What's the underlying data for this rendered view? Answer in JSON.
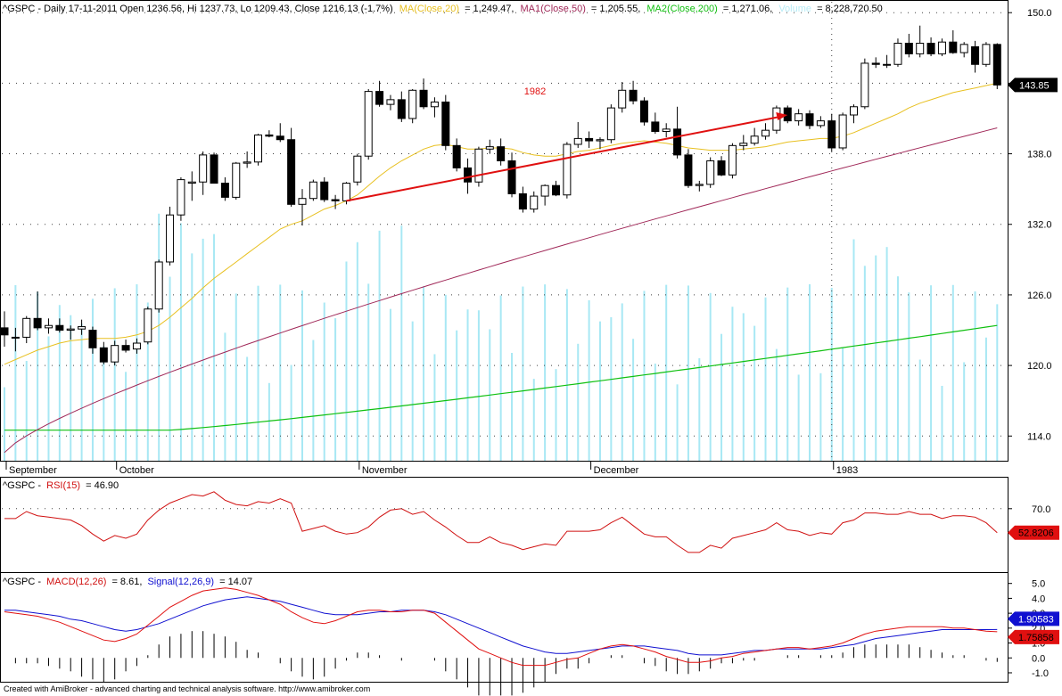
{
  "app": {
    "footer": "Created with AmiBroker - advanced charting and technical analysis software. http://www.amibroker.com"
  },
  "colors": {
    "ma20": "#e8c020",
    "ma50": "#a02858",
    "ma200": "#10c010",
    "volume": "#a8e8f4",
    "trend": "#e01010",
    "rsi": "#d01010",
    "macd": "#e01010",
    "signal": "#1010d0",
    "grid": "#404040"
  },
  "chart_data": [
    {
      "type": "candlestick",
      "header": {
        "symbol_info": "^GSPC - Daily 17-11-2011 Open 1236.56, Hi 1237.73, Lo 1209.43, Close 1216.13 (-1.7%)",
        "ma20_label": "MA(Close,20)",
        "ma20_value": "= 1,249.47,",
        "ma50_label": "MA1(Close,50)",
        "ma50_value": "= 1,205.55,",
        "ma200_label": "MA2(Close,200)",
        "ma200_value": "= 1,271.06,",
        "volume_label": "Volume",
        "volume_value": "= 8,228,720.50"
      },
      "y_ticks": [
        "150.0",
        "144.0",
        "138.0",
        "132.0",
        "126.0",
        "120.0",
        "114.0"
      ],
      "y_tick_values": [
        150,
        144,
        138,
        132,
        126,
        120,
        114
      ],
      "ylim": [
        111.9,
        151.0
      ],
      "x_labels": [
        {
          "label": "September",
          "index": 0
        },
        {
          "label": "October",
          "index": 10
        },
        {
          "label": "November",
          "index": 32
        },
        {
          "label": "December",
          "index": 53
        },
        {
          "label": "1983",
          "index": 75
        }
      ],
      "year_divider_index": 75,
      "annotation": {
        "text": "1982"
      },
      "last_price": "143.85",
      "trend_line": {
        "from_index": 31,
        "from_value": 134.0,
        "to_index": 71,
        "to_value": 141.3
      },
      "candles": [
        [
          123.2,
          124.6,
          121.6,
          122.6
        ],
        [
          122.4,
          123.2,
          121.2,
          122.4
        ],
        [
          122.4,
          124.2,
          121.9,
          124.0
        ],
        [
          124.0,
          126.3,
          123.0,
          123.2
        ],
        [
          123.2,
          124.0,
          122.7,
          123.4
        ],
        [
          123.4,
          124.0,
          122.8,
          123.0
        ],
        [
          123.0,
          123.4,
          122.2,
          123.1
        ],
        [
          123.1,
          123.9,
          122.6,
          123.3
        ],
        [
          123.0,
          123.3,
          121.0,
          121.5
        ],
        [
          121.5,
          122.0,
          120.1,
          120.3
        ],
        [
          120.3,
          122.1,
          120.0,
          121.7
        ],
        [
          121.7,
          122.2,
          121.1,
          121.3
        ],
        [
          121.4,
          122.3,
          121.0,
          121.9
        ],
        [
          122.0,
          125.0,
          121.8,
          124.8
        ],
        [
          124.8,
          129.0,
          124.5,
          128.8
        ],
        [
          128.8,
          133.5,
          128.5,
          132.8
        ],
        [
          132.8,
          136.0,
          132.3,
          135.8
        ],
        [
          135.5,
          136.5,
          134.0,
          135.6
        ],
        [
          135.6,
          138.2,
          134.5,
          137.9
        ],
        [
          137.9,
          138.1,
          135.5,
          135.5
        ],
        [
          135.5,
          136.0,
          134.0,
          134.3
        ],
        [
          134.3,
          137.3,
          134.1,
          137.2
        ],
        [
          137.2,
          138.2,
          136.8,
          137.3
        ],
        [
          137.3,
          139.7,
          137.0,
          139.6
        ],
        [
          139.6,
          140.0,
          139.4,
          139.5
        ],
        [
          139.5,
          140.6,
          139.0,
          139.2
        ],
        [
          139.2,
          140.2,
          133.5,
          133.7
        ],
        [
          133.7,
          135.0,
          131.9,
          134.2
        ],
        [
          134.2,
          135.8,
          134.0,
          135.6
        ],
        [
          135.6,
          136.0,
          133.9,
          134.1
        ],
        [
          134.1,
          134.5,
          133.3,
          134.0
        ],
        [
          134.0,
          135.6,
          133.7,
          135.5
        ],
        [
          135.6,
          138.0,
          135.3,
          137.8
        ],
        [
          137.8,
          143.5,
          137.5,
          143.3
        ],
        [
          143.3,
          144.2,
          142.0,
          142.2
        ],
        [
          142.2,
          143.0,
          141.7,
          142.6
        ],
        [
          142.6,
          143.3,
          140.7,
          141.0
        ],
        [
          141.0,
          143.5,
          140.6,
          143.4
        ],
        [
          143.4,
          144.4,
          141.8,
          142.0
        ],
        [
          142.0,
          142.8,
          141.1,
          142.4
        ],
        [
          142.4,
          143.0,
          138.3,
          138.7
        ],
        [
          138.7,
          139.3,
          136.5,
          136.8
        ],
        [
          136.8,
          137.6,
          134.6,
          135.6
        ],
        [
          135.6,
          138.6,
          135.2,
          138.4
        ],
        [
          138.4,
          139.2,
          138.0,
          138.6
        ],
        [
          138.6,
          139.3,
          137.0,
          137.4
        ],
        [
          137.4,
          138.1,
          134.3,
          134.6
        ],
        [
          134.6,
          135.2,
          133.0,
          133.3
        ],
        [
          133.3,
          134.8,
          133.0,
          134.4
        ],
        [
          134.4,
          135.4,
          133.6,
          135.3
        ],
        [
          135.3,
          135.7,
          134.4,
          134.5
        ],
        [
          134.5,
          139.0,
          134.2,
          138.8
        ],
        [
          138.8,
          140.7,
          138.5,
          139.3
        ],
        [
          139.3,
          139.9,
          138.5,
          139.1
        ],
        [
          139.1,
          139.4,
          138.4,
          139.2
        ],
        [
          139.2,
          142.2,
          138.9,
          141.9
        ],
        [
          141.9,
          144.1,
          141.5,
          143.4
        ],
        [
          143.4,
          144.2,
          142.2,
          142.5
        ],
        [
          142.5,
          142.8,
          140.4,
          140.7
        ],
        [
          140.7,
          141.5,
          139.7,
          139.9
        ],
        [
          139.9,
          140.6,
          139.4,
          140.1
        ],
        [
          140.1,
          142.0,
          137.6,
          137.9
        ],
        [
          137.9,
          138.4,
          135.1,
          135.3
        ],
        [
          135.3,
          135.7,
          134.8,
          135.4
        ],
        [
          135.4,
          137.7,
          135.1,
          137.4
        ],
        [
          137.4,
          137.8,
          136.1,
          136.2
        ],
        [
          136.2,
          138.9,
          135.9,
          138.7
        ],
        [
          138.7,
          139.6,
          138.3,
          138.9
        ],
        [
          138.9,
          140.2,
          138.7,
          139.5
        ],
        [
          139.5,
          140.6,
          139.2,
          140.0
        ],
        [
          140.0,
          142.1,
          139.7,
          141.9
        ],
        [
          141.9,
          142.1,
          140.6,
          140.8
        ],
        [
          140.8,
          141.8,
          140.4,
          141.4
        ],
        [
          141.4,
          141.7,
          140.1,
          140.4
        ],
        [
          140.4,
          141.2,
          140.2,
          140.8
        ],
        [
          140.8,
          141.4,
          138.2,
          138.5
        ],
        [
          138.5,
          141.5,
          138.3,
          141.3
        ],
        [
          141.3,
          142.2,
          140.6,
          142.0
        ],
        [
          142.0,
          146.1,
          141.8,
          145.7
        ],
        [
          145.7,
          146.2,
          145.3,
          145.6
        ],
        [
          145.6,
          146.4,
          145.3,
          145.6
        ],
        [
          145.6,
          147.8,
          145.4,
          147.4
        ],
        [
          147.4,
          148.2,
          146.2,
          146.5
        ],
        [
          146.5,
          148.9,
          146.2,
          147.4
        ],
        [
          147.4,
          147.9,
          146.3,
          146.5
        ],
        [
          146.5,
          147.8,
          146.3,
          147.5
        ],
        [
          147.5,
          148.5,
          146.5,
          146.6
        ],
        [
          146.6,
          147.5,
          146.2,
          147.3
        ],
        [
          147.1,
          147.6,
          144.9,
          145.6
        ],
        [
          145.6,
          147.5,
          145.4,
          147.3
        ],
        [
          147.3,
          147.4,
          143.5,
          143.85
        ]
      ],
      "ma20": [
        120.1,
        120.5,
        120.9,
        121.3,
        121.6,
        121.9,
        122.1,
        122.2,
        122.3,
        122.3,
        122.3,
        122.4,
        122.6,
        122.9,
        123.4,
        124.1,
        124.9,
        125.7,
        126.6,
        127.4,
        128.1,
        128.8,
        129.5,
        130.2,
        130.9,
        131.6,
        132.0,
        132.3,
        132.8,
        133.3,
        133.6,
        134.0,
        134.5,
        135.3,
        136.1,
        136.8,
        137.4,
        137.9,
        138.4,
        138.7,
        138.8,
        138.6,
        138.4,
        138.4,
        138.5,
        138.5,
        138.4,
        138.1,
        137.9,
        137.8,
        137.8,
        138.0,
        138.2,
        138.3,
        138.5,
        138.7,
        138.9,
        139.0,
        139.1,
        139.0,
        138.9,
        138.7,
        138.5,
        138.4,
        138.3,
        138.3,
        138.3,
        138.4,
        138.5,
        138.6,
        138.8,
        139.0,
        139.1,
        139.2,
        139.3,
        139.3,
        139.5,
        139.8,
        140.2,
        140.6,
        141.0,
        141.4,
        141.9,
        142.3,
        142.6,
        142.9,
        143.2,
        143.4,
        143.6,
        143.8,
        144.0
      ]
    },
    {
      "type": "line",
      "header": {
        "symbol": "^GSPC -",
        "rsi_label": "RSI(15)",
        "rsi_value": "= 46.90"
      },
      "y_ticks": [
        "70.0"
      ],
      "y_tick_values": [
        70
      ],
      "ylim": [
        25,
        92
      ],
      "last_value": "52.8206",
      "rsi": [
        63,
        63,
        68,
        65,
        64,
        63,
        62,
        58,
        52,
        47,
        51,
        49,
        52,
        62,
        69,
        74,
        77,
        80,
        79,
        82,
        76,
        73,
        72,
        75,
        74,
        77,
        74,
        54,
        56,
        58,
        54,
        52,
        53,
        57,
        64,
        69,
        70,
        66,
        68,
        62,
        57,
        51,
        46,
        46,
        50,
        46,
        44,
        41,
        43,
        45,
        44,
        54,
        54,
        54,
        55,
        60,
        64,
        58,
        52,
        50,
        50,
        44,
        39,
        39,
        44,
        42,
        49,
        51,
        53,
        55,
        60,
        55,
        54,
        51,
        53,
        52,
        60,
        62,
        67,
        67,
        66,
        66,
        68,
        66,
        66,
        63,
        65,
        65,
        64,
        60,
        53
      ]
    },
    {
      "type": "line",
      "header": {
        "symbol": "^GSPC -",
        "macd_label": "MACD(12,26)",
        "macd_value": "= 8.61,",
        "signal_label": "Signal(12,26,9)",
        "signal_value": "= 14.07"
      },
      "y_ticks": [
        "5.0",
        "4.0",
        "3.0",
        "2.0",
        "1.0",
        "0.0",
        "-1.0"
      ],
      "y_tick_values": [
        5,
        4,
        3,
        2,
        1,
        0,
        -1
      ],
      "ylim": [
        -1.6,
        5.7
      ],
      "last_macd": "1.75858",
      "last_signal": "1.90583",
      "macd": [
        3.1,
        3.0,
        2.9,
        2.8,
        2.6,
        2.4,
        2.1,
        1.8,
        1.5,
        1.2,
        1.1,
        1.3,
        1.6,
        2.2,
        2.8,
        3.4,
        3.8,
        4.2,
        4.5,
        4.6,
        4.7,
        4.6,
        4.4,
        4.2,
        3.9,
        3.6,
        3.1,
        2.7,
        2.4,
        2.3,
        2.5,
        2.8,
        3.1,
        3.2,
        3.2,
        3.1,
        3.1,
        3.2,
        3.2,
        3.0,
        2.4,
        1.8,
        1.2,
        0.6,
        0.3,
        0.0,
        -0.3,
        -0.5,
        -0.5,
        -0.5,
        -0.3,
        -0.1,
        0.0,
        0.3,
        0.6,
        0.8,
        0.9,
        0.8,
        0.6,
        0.4,
        0.1,
        -0.1,
        -0.3,
        -0.3,
        -0.2,
        0.0,
        0.1,
        0.3,
        0.4,
        0.5,
        0.6,
        0.7,
        0.7,
        0.6,
        0.7,
        0.8,
        1.0,
        1.3,
        1.6,
        1.8,
        1.9,
        2.0,
        2.1,
        2.1,
        2.1,
        2.1,
        2.0,
        2.0,
        1.9,
        1.8,
        1.75858
      ],
      "signal": [
        3.2,
        3.2,
        3.1,
        3.0,
        2.9,
        2.8,
        2.6,
        2.5,
        2.3,
        2.1,
        1.9,
        1.8,
        1.9,
        2.1,
        2.3,
        2.6,
        2.9,
        3.2,
        3.5,
        3.7,
        3.9,
        4.0,
        4.1,
        4.0,
        3.9,
        3.8,
        3.6,
        3.4,
        3.2,
        3.0,
        2.9,
        2.9,
        2.9,
        3.0,
        3.1,
        3.1,
        3.2,
        3.2,
        3.2,
        3.1,
        2.9,
        2.6,
        2.3,
        2.0,
        1.7,
        1.4,
        1.1,
        0.8,
        0.6,
        0.4,
        0.3,
        0.3,
        0.4,
        0.5,
        0.6,
        0.7,
        0.8,
        0.8,
        0.8,
        0.7,
        0.6,
        0.5,
        0.3,
        0.2,
        0.2,
        0.2,
        0.3,
        0.4,
        0.5,
        0.5,
        0.6,
        0.6,
        0.6,
        0.6,
        0.6,
        0.7,
        0.8,
        0.9,
        1.1,
        1.3,
        1.4,
        1.5,
        1.6,
        1.7,
        1.8,
        1.9,
        1.9,
        1.9,
        1.9,
        1.9,
        1.90583
      ]
    }
  ]
}
